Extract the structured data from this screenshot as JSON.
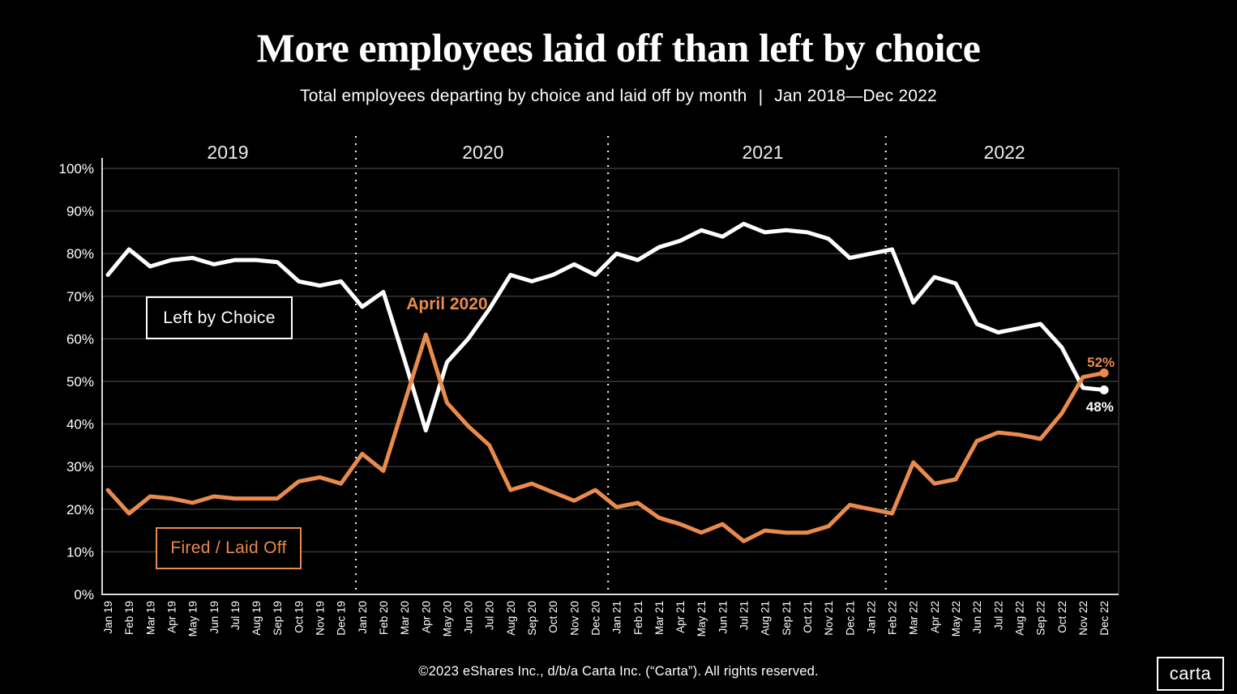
{
  "header": {
    "title": "More employees laid off than left by choice",
    "subtitle": "Total employees departing by choice and laid off by month",
    "separator": "|",
    "date_range": "Jan 2018—Dec 2022"
  },
  "colors": {
    "background": "#000000",
    "left_by_choice": "#ffffff",
    "fired_laid_off": "#e98b4d",
    "gridline": "#3a3a3a",
    "axis": "#d9d9d9",
    "year_label": "#ececec"
  },
  "legend": {
    "left_by_choice": "Left by Choice",
    "fired_laid_off": "Fired / Laid Off"
  },
  "chart_data": {
    "type": "line",
    "title": "More employees laid off than left by choice",
    "xlabel": "",
    "ylabel": "",
    "ylim": [
      0,
      100
    ],
    "y_tick_step": 10,
    "y_tick_suffix": "%",
    "grid": true,
    "x_labels": [
      "Jan 19",
      "Feb 19",
      "Mar 19",
      "Apr 19",
      "May 19",
      "Jun 19",
      "Jul 19",
      "Aug 19",
      "Sep 19",
      "Oct 19",
      "Nov 19",
      "Dec 19",
      "Jan 20",
      "Feb 20",
      "Mar 20",
      "Apr 20",
      "May 20",
      "Jun 20",
      "Jul 20",
      "Aug 20",
      "Sep 20",
      "Oct 20",
      "Nov 20",
      "Dec 20",
      "Jan 21",
      "Feb 21",
      "Mar 21",
      "Apr 21",
      "May 21",
      "Jun 21",
      "Jul 21",
      "Aug 21",
      "Sep 21",
      "Oct 21",
      "Nov 21",
      "Dec 21",
      "Jan 22",
      "Feb 22",
      "Mar 22",
      "Apr 22",
      "May 22",
      "Jun 22",
      "Jul 22",
      "Aug 22",
      "Sep 22",
      "Oct 22",
      "Nov 22",
      "Dec 22"
    ],
    "series": [
      {
        "name": "Left by Choice",
        "color": "#ffffff",
        "values": [
          75,
          81,
          77,
          78.5,
          79,
          77.5,
          78.5,
          78.5,
          78,
          73.5,
          72.5,
          73.5,
          67.5,
          71,
          55,
          38.5,
          54.5,
          60,
          67,
          75,
          73.5,
          75,
          77.5,
          75,
          80,
          78.5,
          81.5,
          83,
          85.5,
          84,
          87,
          85,
          85.5,
          85,
          83.5,
          79,
          80,
          81,
          68.5,
          74.5,
          73,
          63.5,
          61.5,
          62.5,
          63.5,
          58,
          48.5,
          48
        ]
      },
      {
        "name": "Fired / Laid Off",
        "color": "#e98b4d",
        "values": [
          24.5,
          19,
          23,
          22.5,
          21.5,
          23,
          22.5,
          22.5,
          22.5,
          26.5,
          27.5,
          26,
          33,
          29,
          45,
          61,
          45,
          39.5,
          35,
          24.5,
          26,
          24,
          22,
          24.5,
          20.5,
          21.5,
          18,
          16.5,
          14.5,
          16.5,
          12.5,
          15,
          14.5,
          14.5,
          16,
          21,
          20,
          19,
          31,
          26,
          27,
          36,
          38,
          37.5,
          36.5,
          42.5,
          51,
          52
        ]
      }
    ],
    "year_labels": [
      {
        "text": "2019",
        "month_index": 5.66
      },
      {
        "text": "2020",
        "month_index": 17.7
      },
      {
        "text": "2021",
        "month_index": 30.9
      },
      {
        "text": "2022",
        "month_index": 42.3
      }
    ],
    "year_divider_month_index": [
      11.7,
      23.6,
      36.7
    ],
    "annotations": [
      {
        "text": "April 2020",
        "month_index": 16,
        "value": 68,
        "color": "#e98b4d"
      }
    ],
    "end_labels": [
      {
        "text": "52%",
        "month_index": 46.85,
        "value": 54.3,
        "color": "#e98b4d"
      },
      {
        "text": "48%",
        "month_index": 46.8,
        "value": 43.9,
        "color": "#ffffff"
      }
    ],
    "legend_position": "inside-boxes"
  },
  "footer": {
    "text": "©2023 eShares Inc., d/b/a Carta Inc. (“Carta”). All rights reserved."
  },
  "logo": {
    "text": "carta"
  }
}
